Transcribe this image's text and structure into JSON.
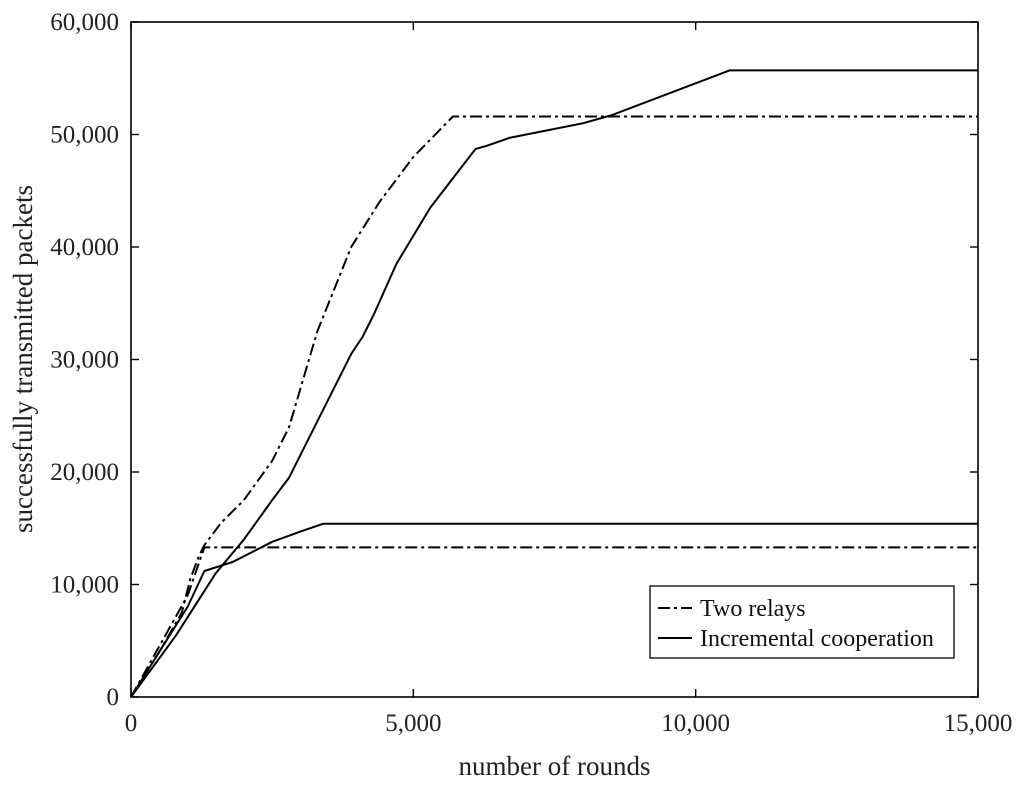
{
  "chart_data": {
    "type": "line",
    "title": "",
    "xlabel": "number of rounds",
    "ylabel": "successfully transmitted packets",
    "xlim": [
      0,
      15000
    ],
    "ylim": [
      0,
      60000
    ],
    "x_ticks": [
      0,
      5000,
      10000,
      15000
    ],
    "x_tick_labels": [
      "0",
      "5,000",
      "10,000",
      "15,000"
    ],
    "y_ticks": [
      0,
      10000,
      20000,
      30000,
      40000,
      50000,
      60000
    ],
    "y_tick_labels": [
      "0",
      "10,000",
      "20,000",
      "30,000",
      "40,000",
      "50,000",
      "60,000"
    ],
    "grid": false,
    "legend_position": "bottom-right",
    "series": [
      {
        "name": "Two relays",
        "style": "dash-dot",
        "color": "#000000",
        "curves": [
          {
            "x": [
              0,
              500,
              900,
              1050,
              1200,
              1300,
              1600,
              2000,
              2500,
              2800,
              3300,
              3900,
              4400,
              5000,
              5700,
              8000,
              15000
            ],
            "y": [
              0,
              4000,
              7500,
              10500,
              12500,
              13500,
              15500,
              17500,
              21000,
              24000,
              32500,
              40000,
              44000,
              48000,
              51600,
              51600,
              51600
            ]
          },
          {
            "x": [
              0,
              500,
              1000,
              1300,
              2000,
              5000,
              10000,
              15000
            ],
            "y": [
              0,
              4500,
              9000,
              13300,
              13300,
              13300,
              13300,
              13300
            ]
          }
        ]
      },
      {
        "name": "Incremental cooperation",
        "style": "solid",
        "color": "#000000",
        "curves": [
          {
            "x": [
              0,
              800,
              1500,
              2000,
              2500,
              2800,
              3200,
              3600,
              3900,
              4100,
              4300,
              4700,
              5300,
              6100,
              6300,
              6700,
              8000,
              8500,
              10600,
              15000
            ],
            "y": [
              0,
              5500,
              11000,
              14000,
              17500,
              19500,
              23500,
              27500,
              30500,
              32000,
              34000,
              38500,
              43500,
              48700,
              49000,
              49700,
              51000,
              51700,
              55700,
              55700
            ]
          },
          {
            "x": [
              0,
              500,
              1000,
              1300,
              1800,
              2500,
              3000,
              3400,
              5000,
              10000,
              15000
            ],
            "y": [
              0,
              4000,
              8000,
              11200,
              12000,
              13800,
              14700,
              15400,
              15400,
              15400,
              15400
            ]
          }
        ]
      }
    ]
  }
}
